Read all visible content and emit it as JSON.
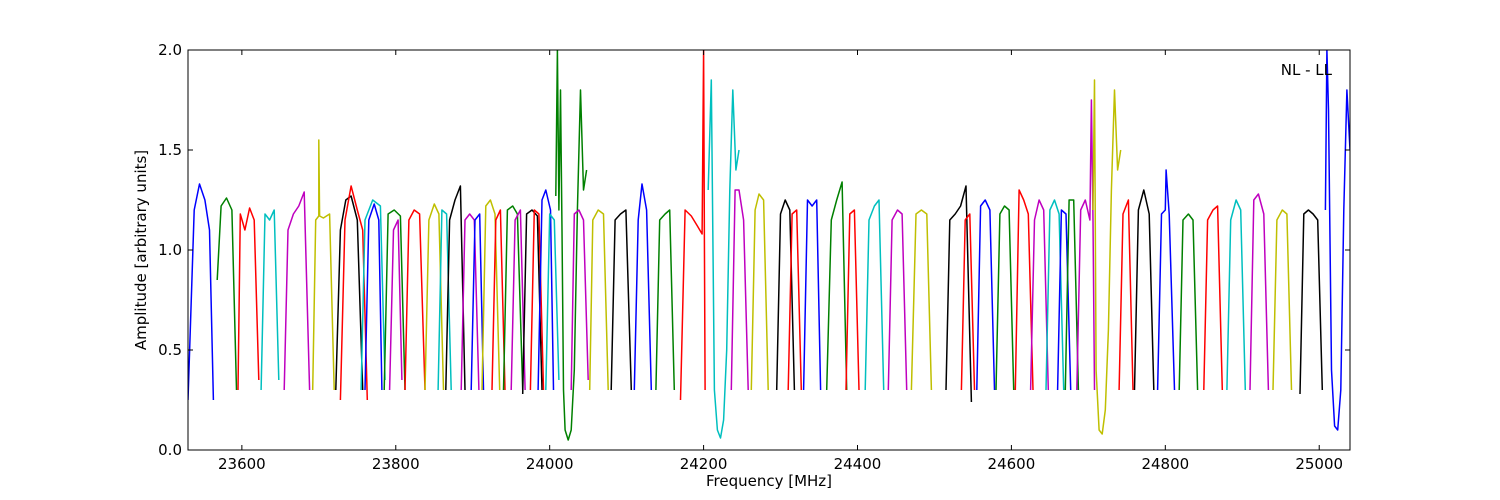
{
  "chart_data": {
    "type": "line",
    "title": "",
    "xlabel": "Frequency [MHz]",
    "ylabel": "Amplitude [arbitrary units]",
    "xlim": [
      23530,
      25040
    ],
    "ylim": [
      0.0,
      2.0
    ],
    "x_ticks": [
      23600,
      23800,
      24000,
      24200,
      24400,
      24600,
      24800,
      25000
    ],
    "x_tick_labels": [
      "23600",
      "23800",
      "24000",
      "24200",
      "24400",
      "24600",
      "24800",
      "25000"
    ],
    "y_ticks": [
      0.0,
      0.5,
      1.0,
      1.5,
      2.0
    ],
    "y_tick_labels": [
      "0.0",
      "0.5",
      "1.0",
      "1.5",
      "2.0"
    ],
    "annotation": "NL - LL",
    "grid": false,
    "colors": [
      "#0000ff",
      "#008000",
      "#ff0000",
      "#00bfbf",
      "#bf00bf",
      "#bfbf00",
      "#000000"
    ],
    "series": [
      {
        "color": "#0000ff",
        "x": [
          23530,
          23538,
          23545,
          23552,
          23558,
          23563
        ],
        "y": [
          0.25,
          1.2,
          1.33,
          1.25,
          1.1,
          0.25
        ]
      },
      {
        "color": "#008000",
        "x": [
          23568,
          23573,
          23580,
          23587,
          23593
        ],
        "y": [
          0.85,
          1.22,
          1.26,
          1.2,
          0.3
        ]
      },
      {
        "color": "#ff0000",
        "x": [
          23595,
          23598,
          23604,
          23610,
          23616,
          23622
        ],
        "y": [
          0.3,
          1.18,
          1.1,
          1.21,
          1.15,
          0.35
        ]
      },
      {
        "color": "#00bfbf",
        "x": [
          23625,
          23630,
          23636,
          23642,
          23648
        ],
        "y": [
          0.3,
          1.18,
          1.15,
          1.2,
          0.35
        ]
      },
      {
        "color": "#bf00bf",
        "x": [
          23655,
          23660,
          23667,
          23674,
          23681,
          23688
        ],
        "y": [
          0.3,
          1.1,
          1.18,
          1.22,
          1.29,
          0.3
        ]
      },
      {
        "color": "#bfbf00",
        "x": [
          23692,
          23696,
          23700,
          23700,
          23701,
          23706,
          23714,
          23720
        ],
        "y": [
          0.3,
          1.15,
          1.17,
          1.55,
          1.17,
          1.16,
          1.18,
          0.3
        ]
      },
      {
        "color": "#000000",
        "x": [
          23722,
          23728,
          23735,
          23742,
          23750,
          23757
        ],
        "y": [
          0.3,
          1.1,
          1.25,
          1.27,
          1.15,
          0.3
        ]
      },
      {
        "color": "#ff0000",
        "x": [
          23728,
          23734,
          23742,
          23750,
          23757,
          23763
        ],
        "y": [
          0.25,
          1.15,
          1.32,
          1.2,
          1.1,
          0.25
        ]
      },
      {
        "color": "#00bfbf",
        "x": [
          23755,
          23760,
          23770,
          23780,
          23786
        ],
        "y": [
          0.3,
          1.15,
          1.25,
          1.22,
          0.35
        ]
      },
      {
        "color": "#0000ff",
        "x": [
          23760,
          23765,
          23772,
          23778,
          23782
        ],
        "y": [
          0.3,
          1.15,
          1.23,
          1.15,
          0.3
        ]
      },
      {
        "color": "#008000",
        "x": [
          23785,
          23790,
          23798,
          23806,
          23812
        ],
        "y": [
          0.3,
          1.18,
          1.2,
          1.17,
          0.3
        ]
      },
      {
        "color": "#bf00bf",
        "x": [
          23792,
          23797,
          23803,
          23808
        ],
        "y": [
          0.3,
          1.1,
          1.15,
          0.35
        ]
      },
      {
        "color": "#ff0000",
        "x": [
          23812,
          23817,
          23824,
          23831,
          23838
        ],
        "y": [
          0.3,
          1.15,
          1.2,
          1.18,
          0.3
        ]
      },
      {
        "color": "#bfbf00",
        "x": [
          23838,
          23843,
          23850,
          23856,
          23862
        ],
        "y": [
          0.3,
          1.15,
          1.23,
          1.18,
          0.3
        ]
      },
      {
        "color": "#00bfbf",
        "x": [
          23855,
          23860,
          23866,
          23872
        ],
        "y": [
          0.3,
          1.2,
          1.18,
          0.3
        ]
      },
      {
        "color": "#000000",
        "x": [
          23865,
          23870,
          23877,
          23884,
          23890
        ],
        "y": [
          0.3,
          1.15,
          1.25,
          1.32,
          0.3
        ]
      },
      {
        "color": "#bf00bf",
        "x": [
          23885,
          23890,
          23896,
          23902,
          23908
        ],
        "y": [
          0.3,
          1.15,
          1.18,
          1.15,
          0.3
        ]
      },
      {
        "color": "#0000ff",
        "x": [
          23898,
          23903,
          23909,
          23914
        ],
        "y": [
          0.3,
          1.15,
          1.18,
          0.3
        ]
      },
      {
        "color": "#bfbf00",
        "x": [
          23912,
          23917,
          23923,
          23929,
          23935
        ],
        "y": [
          0.3,
          1.22,
          1.25,
          1.18,
          0.3
        ]
      },
      {
        "color": "#ff0000",
        "x": [
          23925,
          23930,
          23936,
          23942
        ],
        "y": [
          0.3,
          1.15,
          1.2,
          0.3
        ]
      },
      {
        "color": "#008000",
        "x": [
          23940,
          23945,
          23952,
          23958,
          23965
        ],
        "y": [
          0.3,
          1.2,
          1.22,
          1.18,
          0.3
        ]
      },
      {
        "color": "#bf00bf",
        "x": [
          23950,
          23955,
          23962,
          23968
        ],
        "y": [
          0.3,
          1.15,
          1.2,
          0.3
        ]
      },
      {
        "color": "#000000",
        "x": [
          23965,
          23970,
          23977,
          23984,
          23990
        ],
        "y": [
          0.28,
          1.18,
          1.2,
          1.17,
          0.3
        ]
      },
      {
        "color": "#ff0000",
        "x": [
          23975,
          23980,
          23986,
          23992
        ],
        "y": [
          0.3,
          1.2,
          1.18,
          0.3
        ]
      },
      {
        "color": "#0000ff",
        "x": [
          23985,
          23990,
          23995,
          24001,
          24005
        ],
        "y": [
          0.3,
          1.25,
          1.3,
          1.2,
          0.3
        ]
      },
      {
        "color": "#00bfbf",
        "x": [
          23995,
          24000,
          24006,
          24012
        ],
        "y": [
          0.3,
          1.18,
          1.15,
          0.35
        ]
      },
      {
        "color": "#008000",
        "x": [
          24008,
          24010,
          24012,
          24014,
          24016,
          24018,
          24020,
          24024,
          24028,
          24032,
          24036,
          24040,
          24044,
          24048
        ],
        "y": [
          1.27,
          2.0,
          1.2,
          1.8,
          1.1,
          0.3,
          0.1,
          0.05,
          0.1,
          0.4,
          1.2,
          1.8,
          1.3,
          1.4
        ]
      },
      {
        "color": "#bf00bf",
        "x": [
          24028,
          24032,
          24038,
          24044,
          24050
        ],
        "y": [
          0.3,
          1.18,
          1.2,
          1.15,
          0.35
        ]
      },
      {
        "color": "#bfbf00",
        "x": [
          24052,
          24056,
          24063,
          24070,
          24076
        ],
        "y": [
          0.3,
          1.15,
          1.2,
          1.18,
          0.3
        ]
      },
      {
        "color": "#000000",
        "x": [
          24080,
          24085,
          24092,
          24099,
          24106
        ],
        "y": [
          0.3,
          1.15,
          1.18,
          1.2,
          0.3
        ]
      },
      {
        "color": "#0000ff",
        "x": [
          24110,
          24115,
          24120,
          24126,
          24132
        ],
        "y": [
          0.3,
          1.15,
          1.33,
          1.2,
          0.3
        ]
      },
      {
        "color": "#008000",
        "x": [
          24138,
          24143,
          24150,
          24156,
          24162
        ],
        "y": [
          0.3,
          1.15,
          1.18,
          1.2,
          0.3
        ]
      },
      {
        "color": "#ff0000",
        "x": [
          24170,
          24176,
          24184,
          24192,
          24198,
          24200,
          24201,
          24202
        ],
        "y": [
          0.25,
          1.2,
          1.17,
          1.12,
          1.08,
          2.0,
          1.05,
          0.3
        ]
      },
      {
        "color": "#00bfbf",
        "x": [
          24206,
          24210,
          24214,
          24218,
          24222,
          24226,
          24230,
          24234,
          24238,
          24242,
          24246
        ],
        "y": [
          1.3,
          1.85,
          0.3,
          0.1,
          0.06,
          0.15,
          0.5,
          1.3,
          1.8,
          1.4,
          1.5
        ]
      },
      {
        "color": "#bf00bf",
        "x": [
          24236,
          24241,
          24246,
          24252,
          24258
        ],
        "y": [
          0.3,
          1.3,
          1.3,
          1.15,
          0.3
        ]
      },
      {
        "color": "#bfbf00",
        "x": [
          24262,
          24267,
          24272,
          24278,
          24284
        ],
        "y": [
          0.3,
          1.2,
          1.28,
          1.25,
          0.3
        ]
      },
      {
        "color": "#000000",
        "x": [
          24295,
          24300,
          24306,
          24312,
          24318
        ],
        "y": [
          0.3,
          1.18,
          1.25,
          1.2,
          0.3
        ]
      },
      {
        "color": "#ff0000",
        "x": [
          24310,
          24315,
          24321,
          24327
        ],
        "y": [
          0.3,
          1.18,
          1.2,
          0.3
        ]
      },
      {
        "color": "#0000ff",
        "x": [
          24330,
          24335,
          24341,
          24347,
          24352
        ],
        "y": [
          0.3,
          1.25,
          1.22,
          1.25,
          0.3
        ]
      },
      {
        "color": "#008000",
        "x": [
          24360,
          24366,
          24373,
          24380,
          24386
        ],
        "y": [
          0.3,
          1.15,
          1.25,
          1.34,
          0.3
        ]
      },
      {
        "color": "#ff0000",
        "x": [
          24385,
          24390,
          24396,
          24402
        ],
        "y": [
          0.3,
          1.18,
          1.2,
          0.3
        ]
      },
      {
        "color": "#00bfbf",
        "x": [
          24410,
          24415,
          24422,
          24428,
          24434
        ],
        "y": [
          0.3,
          1.15,
          1.22,
          1.25,
          0.3
        ]
      },
      {
        "color": "#bf00bf",
        "x": [
          24440,
          24445,
          24452,
          24458,
          24464
        ],
        "y": [
          0.3,
          1.15,
          1.2,
          1.18,
          0.3
        ]
      },
      {
        "color": "#bfbf00",
        "x": [
          24470,
          24476,
          24483,
          24490,
          24496
        ],
        "y": [
          0.3,
          1.18,
          1.2,
          1.18,
          0.3
        ]
      },
      {
        "color": "#000000",
        "x": [
          24515,
          24520,
          24527,
          24534,
          24541,
          24548
        ],
        "y": [
          0.3,
          1.15,
          1.18,
          1.22,
          1.32,
          0.24
        ]
      },
      {
        "color": "#ff0000",
        "x": [
          24535,
          24540,
          24546,
          24552
        ],
        "y": [
          0.3,
          1.15,
          1.18,
          0.3
        ]
      },
      {
        "color": "#0000ff",
        "x": [
          24555,
          24560,
          24566,
          24572,
          24578
        ],
        "y": [
          0.3,
          1.22,
          1.25,
          1.2,
          0.3
        ]
      },
      {
        "color": "#008000",
        "x": [
          24580,
          24585,
          24591,
          24597,
          24603
        ],
        "y": [
          0.3,
          1.18,
          1.22,
          1.2,
          0.3
        ]
      },
      {
        "color": "#ff0000",
        "x": [
          24605,
          24610,
          24616,
          24622,
          24628
        ],
        "y": [
          0.3,
          1.3,
          1.25,
          1.18,
          0.3
        ]
      },
      {
        "color": "#bf00bf",
        "x": [
          24625,
          24630,
          24636,
          24642,
          24648
        ],
        "y": [
          0.3,
          1.15,
          1.25,
          1.2,
          0.3
        ]
      },
      {
        "color": "#00bfbf",
        "x": [
          24645,
          24650,
          24656,
          24662,
          24668
        ],
        "y": [
          0.3,
          1.2,
          1.25,
          1.18,
          0.3
        ]
      },
      {
        "color": "#0000ff",
        "x": [
          24660,
          24665,
          24671,
          24677
        ],
        "y": [
          0.3,
          1.2,
          1.18,
          0.3
        ]
      },
      {
        "color": "#008000",
        "x": [
          24670,
          24675,
          24681,
          24687
        ],
        "y": [
          0.3,
          1.25,
          1.25,
          0.3
        ]
      },
      {
        "color": "#bf00bf",
        "x": [
          24685,
          24690,
          24696,
          24702,
          24704,
          24706,
          24708
        ],
        "y": [
          0.3,
          1.2,
          1.25,
          1.15,
          1.75,
          1.15,
          0.3
        ]
      },
      {
        "color": "#bfbf00",
        "x": [
          24706,
          24708,
          24710,
          24714,
          24718,
          24722,
          24726,
          24730,
          24734,
          24738,
          24742
        ],
        "y": [
          1.2,
          1.85,
          0.4,
          0.1,
          0.08,
          0.2,
          0.6,
          1.3,
          1.8,
          1.4,
          1.5
        ]
      },
      {
        "color": "#ff0000",
        "x": [
          24740,
          24745,
          24752,
          24758
        ],
        "y": [
          0.3,
          1.18,
          1.25,
          0.3
        ]
      },
      {
        "color": "#000000",
        "x": [
          24760,
          24765,
          24772,
          24779,
          24785
        ],
        "y": [
          0.3,
          1.2,
          1.3,
          1.18,
          0.3
        ]
      },
      {
        "color": "#0000ff",
        "x": [
          24790,
          24795,
          24800,
          24801,
          24805,
          24812
        ],
        "y": [
          0.3,
          1.18,
          1.2,
          1.4,
          1.18,
          0.3
        ]
      },
      {
        "color": "#008000",
        "x": [
          24818,
          24823,
          24830,
          24836,
          24842
        ],
        "y": [
          0.3,
          1.15,
          1.18,
          1.15,
          0.3
        ]
      },
      {
        "color": "#ff0000",
        "x": [
          24850,
          24855,
          24862,
          24868,
          24874
        ],
        "y": [
          0.3,
          1.15,
          1.2,
          1.22,
          0.3
        ]
      },
      {
        "color": "#00bfbf",
        "x": [
          24880,
          24885,
          24892,
          24898,
          24904
        ],
        "y": [
          0.3,
          1.15,
          1.25,
          1.2,
          0.3
        ]
      },
      {
        "color": "#bf00bf",
        "x": [
          24910,
          24915,
          24921,
          24928,
          24934
        ],
        "y": [
          0.3,
          1.25,
          1.28,
          1.18,
          0.3
        ]
      },
      {
        "color": "#bfbf00",
        "x": [
          24940,
          24945,
          24952,
          24958,
          24964
        ],
        "y": [
          0.3,
          1.15,
          1.2,
          1.18,
          0.3
        ]
      },
      {
        "color": "#000000",
        "x": [
          24975,
          24980,
          24986,
          24992,
          24998,
          25004
        ],
        "y": [
          0.28,
          1.18,
          1.2,
          1.18,
          1.15,
          0.3
        ]
      },
      {
        "color": "#0000ff",
        "x": [
          25008,
          25010,
          25012,
          25016,
          25020,
          25024,
          25028,
          25032,
          25036,
          25040
        ],
        "y": [
          1.2,
          2.0,
          1.7,
          0.4,
          0.12,
          0.1,
          0.3,
          1.2,
          1.8,
          1.5
        ]
      }
    ]
  }
}
